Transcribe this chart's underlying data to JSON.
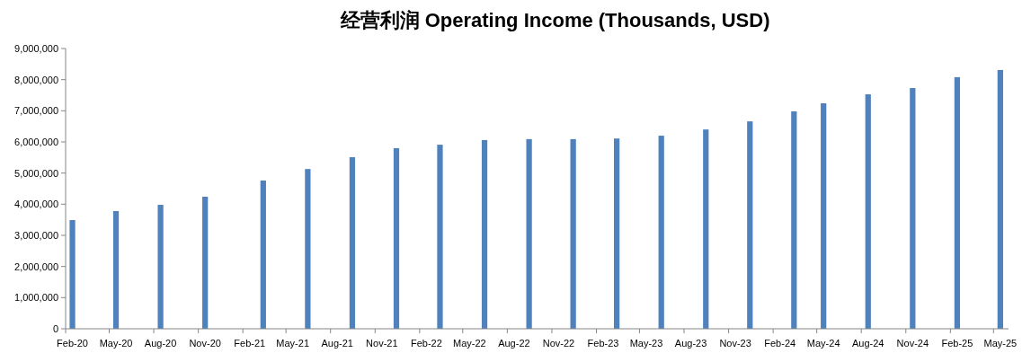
{
  "chart_data": {
    "type": "bar",
    "title": "经营利润 Operating Income (Thousands, USD)",
    "x": [
      "2020-02-15",
      "2020-05-15",
      "2020-08-15",
      "2020-11-15",
      "2021-03-15",
      "2021-06-15",
      "2021-09-15",
      "2021-12-15",
      "2022-03-15",
      "2022-06-15",
      "2022-09-15",
      "2022-12-15",
      "2023-03-15",
      "2023-06-15",
      "2023-09-15",
      "2023-12-15",
      "2024-03-15",
      "2024-05-15",
      "2024-08-15",
      "2024-11-15",
      "2025-02-15",
      "2025-05-15"
    ],
    "values": [
      3490000,
      3780000,
      3980000,
      4240000,
      4760000,
      5130000,
      5510000,
      5800000,
      5910000,
      6060000,
      6090000,
      6090000,
      6110000,
      6200000,
      6400000,
      6660000,
      6980000,
      7240000,
      7530000,
      7730000,
      8080000,
      8310000
    ],
    "color": "#4f81bd",
    "xlim": [
      "2020-02-01",
      "2025-06-01"
    ],
    "xticks": [
      {
        "value": "2020-02-15",
        "label": "Feb-20"
      },
      {
        "value": "2020-05-15",
        "label": "May-20"
      },
      {
        "value": "2020-08-15",
        "label": "Aug-20"
      },
      {
        "value": "2020-11-15",
        "label": "Nov-20"
      },
      {
        "value": "2021-02-15",
        "label": "Feb-21"
      },
      {
        "value": "2021-05-15",
        "label": "May-21"
      },
      {
        "value": "2021-08-15",
        "label": "Aug-21"
      },
      {
        "value": "2021-11-15",
        "label": "Nov-21"
      },
      {
        "value": "2022-02-15",
        "label": "Feb-22"
      },
      {
        "value": "2022-05-15",
        "label": "May-22"
      },
      {
        "value": "2022-08-15",
        "label": "Aug-22"
      },
      {
        "value": "2022-11-15",
        "label": "Nov-22"
      },
      {
        "value": "2023-02-15",
        "label": "Feb-23"
      },
      {
        "value": "2023-05-15",
        "label": "May-23"
      },
      {
        "value": "2023-08-15",
        "label": "Aug-23"
      },
      {
        "value": "2023-11-15",
        "label": "Nov-23"
      },
      {
        "value": "2024-02-15",
        "label": "Feb-24"
      },
      {
        "value": "2024-05-15",
        "label": "May-24"
      },
      {
        "value": "2024-08-15",
        "label": "Aug-24"
      },
      {
        "value": "2024-11-15",
        "label": "Nov-24"
      },
      {
        "value": "2025-02-15",
        "label": "Feb-25"
      },
      {
        "value": "2025-05-15",
        "label": "May-25"
      }
    ],
    "ylim": [
      0,
      9000000
    ],
    "yticks": [
      {
        "value": 0,
        "label": "0"
      },
      {
        "value": 1000000,
        "label": "1,000,000"
      },
      {
        "value": 2000000,
        "label": "2,000,000"
      },
      {
        "value": 3000000,
        "label": "3,000,000"
      },
      {
        "value": 4000000,
        "label": "4,000,000"
      },
      {
        "value": 5000000,
        "label": "5,000,000"
      },
      {
        "value": 6000000,
        "label": "6,000,000"
      },
      {
        "value": 7000000,
        "label": "7,000,000"
      },
      {
        "value": 8000000,
        "label": "8,000,000"
      },
      {
        "value": 9000000,
        "label": "9,000,000"
      }
    ],
    "grid": false
  }
}
